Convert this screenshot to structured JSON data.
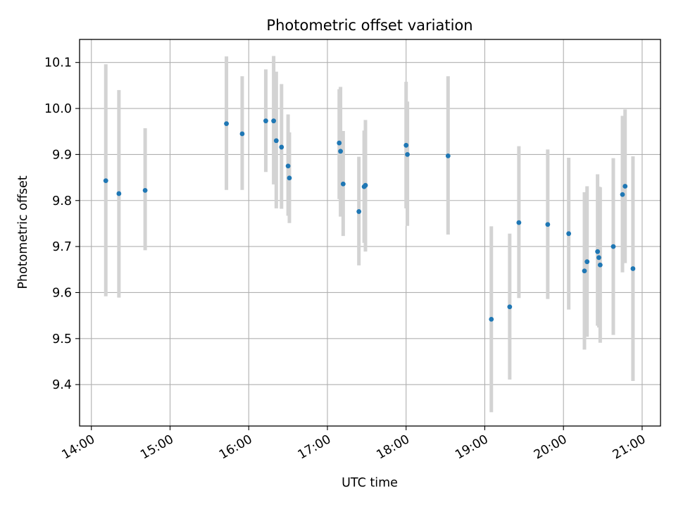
{
  "chart_data": {
    "type": "scatter",
    "title": "Photometric offset variation",
    "xlabel": "UTC time",
    "ylabel": "Photometric offset",
    "x_unit": "hour",
    "xlim": [
      "13:51",
      "21:14"
    ],
    "ylim": [
      9.31,
      10.15
    ],
    "x_ticks": [
      "14:00",
      "15:00",
      "16:00",
      "17:00",
      "18:00",
      "19:00",
      "20:00",
      "21:00"
    ],
    "y_ticks": [
      "9.4",
      "9.5",
      "9.6",
      "9.7",
      "9.8",
      "9.9",
      "10.0",
      "10.1"
    ],
    "grid": true,
    "marker_color": "#1f77b4",
    "errorbar_color": "#d3d3d3",
    "points": [
      {
        "x": "14:11",
        "y": 9.843,
        "lo": 9.592,
        "hi": 10.096
      },
      {
        "x": "14:21",
        "y": 9.815,
        "lo": 9.589,
        "hi": 10.04
      },
      {
        "x": "14:41",
        "y": 9.822,
        "lo": 9.692,
        "hi": 9.957
      },
      {
        "x": "15:43",
        "y": 9.967,
        "lo": 9.823,
        "hi": 10.113
      },
      {
        "x": "15:55",
        "y": 9.945,
        "lo": 9.823,
        "hi": 10.07
      },
      {
        "x": "16:13",
        "y": 9.973,
        "lo": 9.862,
        "hi": 10.085
      },
      {
        "x": "16:19",
        "y": 9.973,
        "lo": 9.835,
        "hi": 10.114
      },
      {
        "x": "16:21",
        "y": 9.93,
        "lo": 9.783,
        "hi": 10.08
      },
      {
        "x": "16:25",
        "y": 9.916,
        "lo": 9.782,
        "hi": 10.053
      },
      {
        "x": "16:30",
        "y": 9.875,
        "lo": 9.767,
        "hi": 9.987
      },
      {
        "x": "16:31",
        "y": 9.849,
        "lo": 9.751,
        "hi": 9.948
      },
      {
        "x": "17:09",
        "y": 9.925,
        "lo": 9.803,
        "hi": 10.042
      },
      {
        "x": "17:10",
        "y": 9.907,
        "lo": 9.765,
        "hi": 10.047
      },
      {
        "x": "17:12",
        "y": 9.836,
        "lo": 9.723,
        "hi": 9.951
      },
      {
        "x": "17:24",
        "y": 9.776,
        "lo": 9.659,
        "hi": 9.895
      },
      {
        "x": "17:28",
        "y": 9.83,
        "lo": 9.708,
        "hi": 9.952
      },
      {
        "x": "17:29",
        "y": 9.833,
        "lo": 9.689,
        "hi": 9.975
      },
      {
        "x": "18:00",
        "y": 9.92,
        "lo": 9.783,
        "hi": 10.058
      },
      {
        "x": "18:01",
        "y": 9.9,
        "lo": 9.745,
        "hi": 10.015
      },
      {
        "x": "18:32",
        "y": 9.897,
        "lo": 9.726,
        "hi": 10.07
      },
      {
        "x": "19:05",
        "y": 9.542,
        "lo": 9.34,
        "hi": 9.744
      },
      {
        "x": "19:19",
        "y": 9.569,
        "lo": 9.411,
        "hi": 9.728
      },
      {
        "x": "19:26",
        "y": 9.752,
        "lo": 9.588,
        "hi": 9.918
      },
      {
        "x": "19:48",
        "y": 9.748,
        "lo": 9.586,
        "hi": 9.911
      },
      {
        "x": "20:04",
        "y": 9.728,
        "lo": 9.563,
        "hi": 9.893
      },
      {
        "x": "20:16",
        "y": 9.647,
        "lo": 9.476,
        "hi": 9.818
      },
      {
        "x": "20:18",
        "y": 9.667,
        "lo": 9.504,
        "hi": 9.831
      },
      {
        "x": "20:26",
        "y": 9.689,
        "lo": 9.528,
        "hi": 9.857
      },
      {
        "x": "20:27",
        "y": 9.676,
        "lo": 9.524,
        "hi": 9.83
      },
      {
        "x": "20:28",
        "y": 9.66,
        "lo": 9.491,
        "hi": 9.829
      },
      {
        "x": "20:38",
        "y": 9.7,
        "lo": 9.508,
        "hi": 9.892
      },
      {
        "x": "20:45",
        "y": 9.813,
        "lo": 9.644,
        "hi": 9.984
      },
      {
        "x": "20:47",
        "y": 9.831,
        "lo": 9.664,
        "hi": 9.998
      },
      {
        "x": "20:53",
        "y": 9.652,
        "lo": 9.408,
        "hi": 9.896
      }
    ]
  }
}
